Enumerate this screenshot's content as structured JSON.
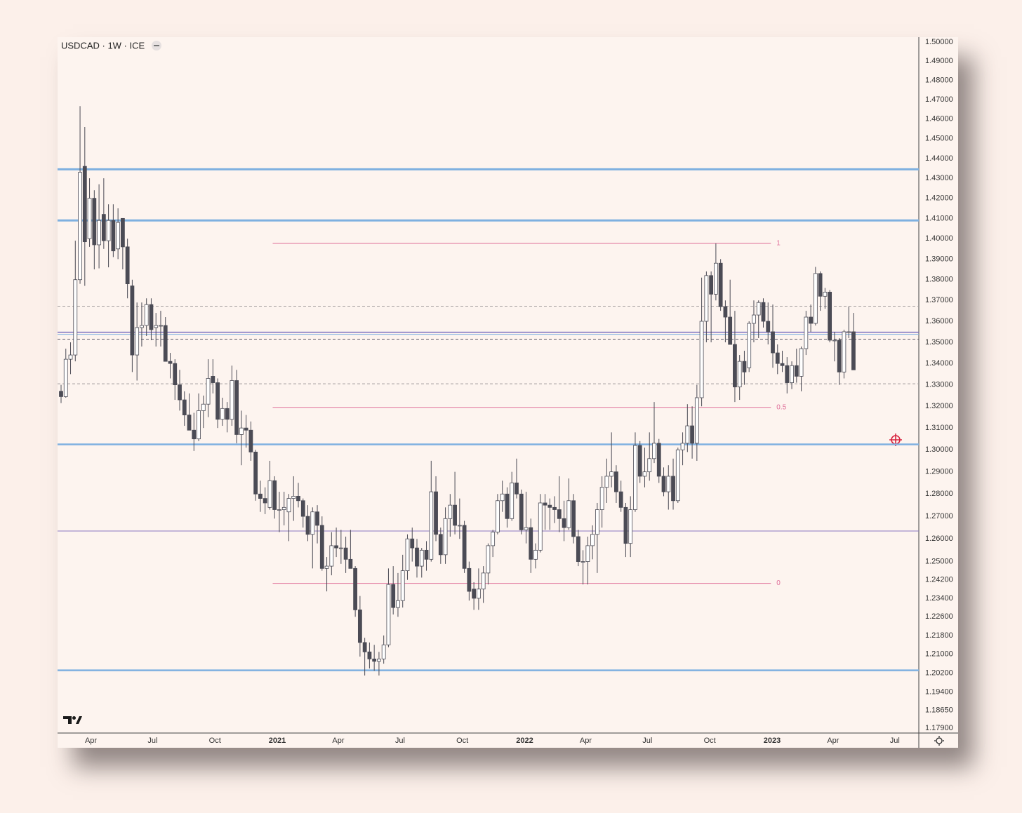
{
  "chart_data": {
    "type": "candlestick",
    "title": "USDCAD · 1W · ICE",
    "log_scale": true,
    "grid": false,
    "up_color": "#ffffff",
    "down_color": "#4b4b55",
    "wick_color": "#4b4b55",
    "ylim": [
      1.177,
      1.5026
    ],
    "yticks": [
      {
        "value": 1.5,
        "label": "1.50000"
      },
      {
        "value": 1.49,
        "label": "1.49000"
      },
      {
        "value": 1.48,
        "label": "1.48000"
      },
      {
        "value": 1.47,
        "label": "1.47000"
      },
      {
        "value": 1.46,
        "label": "1.46000"
      },
      {
        "value": 1.45,
        "label": "1.45000"
      },
      {
        "value": 1.44,
        "label": "1.44000"
      },
      {
        "value": 1.43,
        "label": "1.43000"
      },
      {
        "value": 1.42,
        "label": "1.42000"
      },
      {
        "value": 1.41,
        "label": "1.41000"
      },
      {
        "value": 1.4,
        "label": "1.40000"
      },
      {
        "value": 1.39,
        "label": "1.39000"
      },
      {
        "value": 1.38,
        "label": "1.38000"
      },
      {
        "value": 1.37,
        "label": "1.37000"
      },
      {
        "value": 1.36,
        "label": "1.36000"
      },
      {
        "value": 1.35,
        "label": "1.35000"
      },
      {
        "value": 1.34,
        "label": "1.34000"
      },
      {
        "value": 1.33,
        "label": "1.33000"
      },
      {
        "value": 1.32,
        "label": "1.32000"
      },
      {
        "value": 1.31,
        "label": "1.31000"
      },
      {
        "value": 1.3,
        "label": "1.30000"
      },
      {
        "value": 1.29,
        "label": "1.29000"
      },
      {
        "value": 1.28,
        "label": "1.28000"
      },
      {
        "value": 1.27,
        "label": "1.27000"
      },
      {
        "value": 1.26,
        "label": "1.26000"
      },
      {
        "value": 1.25,
        "label": "1.25000"
      },
      {
        "value": 1.242,
        "label": "1.24200"
      },
      {
        "value": 1.234,
        "label": "1.23400"
      },
      {
        "value": 1.226,
        "label": "1.22600"
      },
      {
        "value": 1.218,
        "label": "1.21800"
      },
      {
        "value": 1.21,
        "label": "1.21000"
      },
      {
        "value": 1.202,
        "label": "1.20200"
      },
      {
        "value": 1.194,
        "label": "1.19400"
      },
      {
        "value": 1.1865,
        "label": "1.18650"
      },
      {
        "value": 1.179,
        "label": "1.17900"
      }
    ],
    "xticks": [
      {
        "value": 6.29,
        "label": "Apr"
      },
      {
        "value": 19.29,
        "label": "Jul"
      },
      {
        "value": 32.43,
        "label": "Oct"
      },
      {
        "value": 45.57,
        "label": "2021"
      },
      {
        "value": 58.43,
        "label": "Apr"
      },
      {
        "value": 71.43,
        "label": "Jul"
      },
      {
        "value": 84.57,
        "label": "Oct"
      },
      {
        "value": 97.71,
        "label": "2022"
      },
      {
        "value": 110.57,
        "label": "Apr"
      },
      {
        "value": 123.57,
        "label": "Jul"
      },
      {
        "value": 136.71,
        "label": "Oct"
      },
      {
        "value": 149.86,
        "label": "2023"
      },
      {
        "value": 162.71,
        "label": "Apr"
      },
      {
        "value": 175.71,
        "label": "Jul"
      }
    ],
    "hlines": [
      {
        "price": 1.4345,
        "color": "#7eb0e0",
        "width": 3,
        "dash": false
      },
      {
        "price": 1.409,
        "color": "#7eb0e0",
        "width": 3,
        "dash": false
      },
      {
        "price": 1.3025,
        "color": "#7eb0e0",
        "width": 2.5,
        "dash": false
      },
      {
        "price": 1.2032,
        "color": "#7eb0e0",
        "width": 2.5,
        "dash": false
      },
      {
        "price": 1.2635,
        "color": "#8c78c0",
        "width": 1,
        "dash": false
      },
      {
        "price": 1.3672,
        "color": "#a09a9a",
        "width": 1,
        "dash": true
      },
      {
        "price": 1.3305,
        "color": "#a09a9a",
        "width": 1,
        "dash": true
      },
      {
        "price": 1.3515,
        "color": "#555566",
        "width": 1,
        "dash": true
      },
      {
        "price": 1.3548,
        "color": "#7a6fc0",
        "width": 1.5,
        "dash": false
      },
      {
        "price": 1.3538,
        "color": "#7eb0e0",
        "width": 1,
        "dash": false
      }
    ],
    "fib": {
      "start": 44.6,
      "end": 149.6,
      "color": "#e0709a",
      "levels": [
        {
          "level": 1,
          "price": 1.3977
        },
        {
          "level": 0.5,
          "price": 1.3195
        },
        {
          "level": 0,
          "price": 1.2405
        }
      ]
    },
    "ohlc": [
      [
        1.327,
        1.33,
        1.3215,
        1.3245
      ],
      [
        1.3245,
        1.347,
        1.324,
        1.342
      ],
      [
        1.342,
        1.35,
        1.335,
        1.344
      ],
      [
        1.344,
        1.399,
        1.341,
        1.38
      ],
      [
        1.38,
        1.4667,
        1.378,
        1.433
      ],
      [
        1.436,
        1.456,
        1.377,
        1.3985
      ],
      [
        1.4,
        1.43,
        1.396,
        1.42
      ],
      [
        1.42,
        1.424,
        1.385,
        1.397
      ],
      [
        1.397,
        1.427,
        1.3855,
        1.409
      ],
      [
        1.412,
        1.43,
        1.395,
        1.399
      ],
      [
        1.399,
        1.417,
        1.386,
        1.409
      ],
      [
        1.409,
        1.417,
        1.391,
        1.394
      ],
      [
        1.395,
        1.415,
        1.39,
        1.408
      ],
      [
        1.41,
        1.41,
        1.385,
        1.396
      ],
      [
        1.396,
        1.4,
        1.371,
        1.378
      ],
      [
        1.377,
        1.38,
        1.336,
        1.344
      ],
      [
        1.344,
        1.369,
        1.332,
        1.357
      ],
      [
        1.357,
        1.369,
        1.348,
        1.358
      ],
      [
        1.358,
        1.371,
        1.353,
        1.368
      ],
      [
        1.368,
        1.371,
        1.351,
        1.356
      ],
      [
        1.357,
        1.364,
        1.348,
        1.358
      ],
      [
        1.358,
        1.365,
        1.348,
        1.358
      ],
      [
        1.358,
        1.362,
        1.341,
        1.341
      ],
      [
        1.341,
        1.345,
        1.333,
        1.34
      ],
      [
        1.34,
        1.342,
        1.323,
        1.33
      ],
      [
        1.33,
        1.337,
        1.318,
        1.323
      ],
      [
        1.323,
        1.327,
        1.311,
        1.316
      ],
      [
        1.316,
        1.326,
        1.31,
        1.309
      ],
      [
        1.309,
        1.317,
        1.2995,
        1.305
      ],
      [
        1.305,
        1.326,
        1.304,
        1.318
      ],
      [
        1.318,
        1.325,
        1.31,
        1.321
      ],
      [
        1.321,
        1.342,
        1.315,
        1.333
      ],
      [
        1.334,
        1.342,
        1.326,
        1.331
      ],
      [
        1.331,
        1.333,
        1.31,
        1.314
      ],
      [
        1.314,
        1.324,
        1.311,
        1.319
      ],
      [
        1.319,
        1.322,
        1.308,
        1.314
      ],
      [
        1.314,
        1.339,
        1.311,
        1.332
      ],
      [
        1.332,
        1.337,
        1.303,
        1.307
      ],
      [
        1.307,
        1.318,
        1.293,
        1.31
      ],
      [
        1.31,
        1.316,
        1.301,
        1.309
      ],
      [
        1.309,
        1.313,
        1.295,
        1.299
      ],
      [
        1.299,
        1.3,
        1.277,
        1.28
      ],
      [
        1.28,
        1.286,
        1.272,
        1.278
      ],
      [
        1.278,
        1.283,
        1.271,
        1.276
      ],
      [
        1.274,
        1.295,
        1.273,
        1.286
      ],
      [
        1.286,
        1.288,
        1.269,
        1.273
      ],
      [
        1.273,
        1.281,
        1.263,
        1.273
      ],
      [
        1.273,
        1.281,
        1.266,
        1.274
      ],
      [
        1.272,
        1.28,
        1.259,
        1.278
      ],
      [
        1.278,
        1.288,
        1.268,
        1.279
      ],
      [
        1.279,
        1.285,
        1.274,
        1.277
      ],
      [
        1.277,
        1.278,
        1.265,
        1.27
      ],
      [
        1.27,
        1.275,
        1.259,
        1.262
      ],
      [
        1.262,
        1.274,
        1.247,
        1.272
      ],
      [
        1.272,
        1.275,
        1.258,
        1.266
      ],
      [
        1.266,
        1.27,
        1.246,
        1.247
      ],
      [
        1.247,
        1.252,
        1.237,
        1.248
      ],
      [
        1.248,
        1.263,
        1.244,
        1.257
      ],
      [
        1.257,
        1.265,
        1.252,
        1.256
      ],
      [
        1.256,
        1.264,
        1.249,
        1.256
      ],
      [
        1.256,
        1.261,
        1.245,
        1.251
      ],
      [
        1.251,
        1.264,
        1.247,
        1.247
      ],
      [
        1.247,
        1.248,
        1.226,
        1.229
      ],
      [
        1.229,
        1.235,
        1.209,
        1.215
      ],
      [
        1.215,
        1.217,
        1.201,
        1.211
      ],
      [
        1.211,
        1.215,
        1.204,
        1.208
      ],
      [
        1.208,
        1.214,
        1.203,
        1.207
      ],
      [
        1.207,
        1.211,
        1.201,
        1.208
      ],
      [
        1.208,
        1.218,
        1.206,
        1.214
      ],
      [
        1.214,
        1.247,
        1.213,
        1.24
      ],
      [
        1.24,
        1.248,
        1.227,
        1.23
      ],
      [
        1.23,
        1.245,
        1.226,
        1.233
      ],
      [
        1.233,
        1.253,
        1.23,
        1.246
      ],
      [
        1.246,
        1.262,
        1.242,
        1.26
      ],
      [
        1.26,
        1.265,
        1.25,
        1.256
      ],
      [
        1.256,
        1.26,
        1.243,
        1.248
      ],
      [
        1.248,
        1.256,
        1.243,
        1.255
      ],
      [
        1.255,
        1.259,
        1.246,
        1.251
      ],
      [
        1.251,
        1.295,
        1.25,
        1.281
      ],
      [
        1.281,
        1.288,
        1.259,
        1.262
      ],
      [
        1.262,
        1.265,
        1.249,
        1.253
      ],
      [
        1.253,
        1.274,
        1.249,
        1.269
      ],
      [
        1.269,
        1.28,
        1.261,
        1.275
      ],
      [
        1.275,
        1.29,
        1.262,
        1.266
      ],
      [
        1.266,
        1.278,
        1.26,
        1.266
      ],
      [
        1.266,
        1.268,
        1.245,
        1.247
      ],
      [
        1.247,
        1.25,
        1.233,
        1.237
      ],
      [
        1.238,
        1.241,
        1.229,
        1.234
      ],
      [
        1.234,
        1.247,
        1.229,
        1.238
      ],
      [
        1.238,
        1.248,
        1.232,
        1.245
      ],
      [
        1.245,
        1.258,
        1.24,
        1.257
      ],
      [
        1.257,
        1.264,
        1.252,
        1.263
      ],
      [
        1.263,
        1.28,
        1.262,
        1.277
      ],
      [
        1.277,
        1.286,
        1.272,
        1.28
      ],
      [
        1.28,
        1.283,
        1.265,
        1.269
      ],
      [
        1.269,
        1.29,
        1.268,
        1.285
      ],
      [
        1.285,
        1.296,
        1.278,
        1.28
      ],
      [
        1.28,
        1.282,
        1.262,
        1.264
      ],
      [
        1.264,
        1.281,
        1.258,
        1.265
      ],
      [
        1.265,
        1.269,
        1.245,
        1.251
      ],
      [
        1.251,
        1.258,
        1.247,
        1.255
      ],
      [
        1.255,
        1.28,
        1.254,
        1.276
      ],
      [
        1.276,
        1.28,
        1.264,
        1.275
      ],
      [
        1.275,
        1.278,
        1.264,
        1.274
      ],
      [
        1.274,
        1.279,
        1.267,
        1.273
      ],
      [
        1.273,
        1.288,
        1.263,
        1.269
      ],
      [
        1.269,
        1.277,
        1.259,
        1.265
      ],
      [
        1.265,
        1.287,
        1.264,
        1.277
      ],
      [
        1.277,
        1.28,
        1.258,
        1.261
      ],
      [
        1.261,
        1.264,
        1.248,
        1.25
      ],
      [
        1.25,
        1.255,
        1.24,
        1.25
      ],
      [
        1.25,
        1.261,
        1.24,
        1.257
      ],
      [
        1.257,
        1.266,
        1.251,
        1.262
      ],
      [
        1.262,
        1.276,
        1.245,
        1.273
      ],
      [
        1.273,
        1.288,
        1.265,
        1.283
      ],
      [
        1.283,
        1.296,
        1.276,
        1.288
      ],
      [
        1.288,
        1.308,
        1.283,
        1.29
      ],
      [
        1.29,
        1.293,
        1.276,
        1.281
      ],
      [
        1.281,
        1.286,
        1.272,
        1.274
      ],
      [
        1.274,
        1.276,
        1.252,
        1.258
      ],
      [
        1.258,
        1.279,
        1.252,
        1.273
      ],
      [
        1.273,
        1.308,
        1.272,
        1.302
      ],
      [
        1.302,
        1.304,
        1.285,
        1.288
      ],
      [
        1.288,
        1.301,
        1.283,
        1.29
      ],
      [
        1.29,
        1.308,
        1.286,
        1.296
      ],
      [
        1.296,
        1.322,
        1.294,
        1.303
      ],
      [
        1.303,
        1.305,
        1.285,
        1.288
      ],
      [
        1.288,
        1.292,
        1.279,
        1.281
      ],
      [
        1.281,
        1.293,
        1.273,
        1.288
      ],
      [
        1.288,
        1.296,
        1.273,
        1.277
      ],
      [
        1.277,
        1.301,
        1.276,
        1.3
      ],
      [
        1.3,
        1.308,
        1.293,
        1.303
      ],
      [
        1.303,
        1.321,
        1.299,
        1.311
      ],
      [
        1.311,
        1.32,
        1.296,
        1.303
      ],
      [
        1.303,
        1.33,
        1.295,
        1.324
      ],
      [
        1.324,
        1.381,
        1.32,
        1.36
      ],
      [
        1.36,
        1.384,
        1.35,
        1.382
      ],
      [
        1.382,
        1.384,
        1.35,
        1.373
      ],
      [
        1.373,
        1.3977,
        1.37,
        1.388
      ],
      [
        1.388,
        1.39,
        1.365,
        1.367
      ],
      [
        1.367,
        1.37,
        1.35,
        1.362
      ],
      [
        1.362,
        1.38,
        1.35,
        1.349
      ],
      [
        1.349,
        1.365,
        1.322,
        1.329
      ],
      [
        1.329,
        1.344,
        1.323,
        1.341
      ],
      [
        1.341,
        1.346,
        1.33,
        1.336
      ],
      [
        1.338,
        1.36,
        1.336,
        1.359
      ],
      [
        1.359,
        1.37,
        1.35,
        1.363
      ],
      [
        1.363,
        1.37,
        1.352,
        1.369
      ],
      [
        1.369,
        1.371,
        1.357,
        1.36
      ],
      [
        1.36,
        1.369,
        1.349,
        1.355
      ],
      [
        1.355,
        1.368,
        1.338,
        1.345
      ],
      [
        1.345,
        1.349,
        1.335,
        1.34
      ],
      [
        1.34,
        1.346,
        1.336,
        1.339
      ],
      [
        1.339,
        1.343,
        1.326,
        1.331
      ],
      [
        1.331,
        1.341,
        1.328,
        1.339
      ],
      [
        1.339,
        1.347,
        1.331,
        1.334
      ],
      [
        1.334,
        1.348,
        1.327,
        1.347
      ],
      [
        1.347,
        1.365,
        1.344,
        1.362
      ],
      [
        1.362,
        1.368,
        1.355,
        1.359
      ],
      [
        1.359,
        1.3862,
        1.358,
        1.383
      ],
      [
        1.383,
        1.384,
        1.365,
        1.372
      ],
      [
        1.372,
        1.376,
        1.366,
        1.374
      ],
      [
        1.374,
        1.375,
        1.35,
        1.351
      ],
      [
        1.351,
        1.355,
        1.341,
        1.351
      ],
      [
        1.351,
        1.352,
        1.33,
        1.336
      ],
      [
        1.336,
        1.356,
        1.333,
        1.355
      ],
      [
        1.355,
        1.367,
        1.352,
        1.355
      ],
      [
        1.355,
        1.364,
        1.337,
        1.337
      ]
    ]
  }
}
